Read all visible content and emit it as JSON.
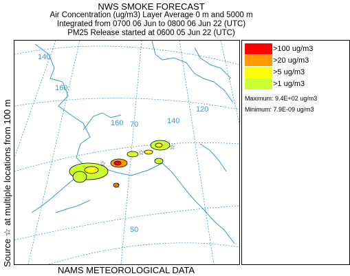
{
  "header": {
    "title": "NWS SMOKE FORECAST",
    "line2": "Air Concentration (ug/m3) Layer Average    0 m and  5000 m",
    "line3": "Integrated from 0700 06 Jun to 0800 06 Jun 22 (UTC)",
    "line4": "PM25 Release started at 0600 05 Jun 22 (UTC)"
  },
  "side_label": "Source ☆ at multiple locations  from  100 m",
  "footer": "NAMS METEOROLOGICAL DATA",
  "map": {
    "grid_labels": [
      "140",
      "160",
      "160",
      "140",
      "120",
      "70",
      "50"
    ]
  },
  "legend": {
    "items": [
      {
        "label": ">100 ug/m3",
        "color": "#ff0000"
      },
      {
        "label": ">20 ug/m3",
        "color": "#ff9900"
      },
      {
        "label": ">5 ug/m3",
        "color": "#ffff00"
      },
      {
        "label": ">1 ug/m3",
        "color": "#ccff33"
      }
    ],
    "maximum": "Maximum: 9.4E+02 ug/m3",
    "minimum": "Minimum: 7.9E-09 ug/m3"
  },
  "colors": {
    "coast": "#3399cc",
    "grid": "#3399cc",
    "plume_edge": "#000000"
  }
}
